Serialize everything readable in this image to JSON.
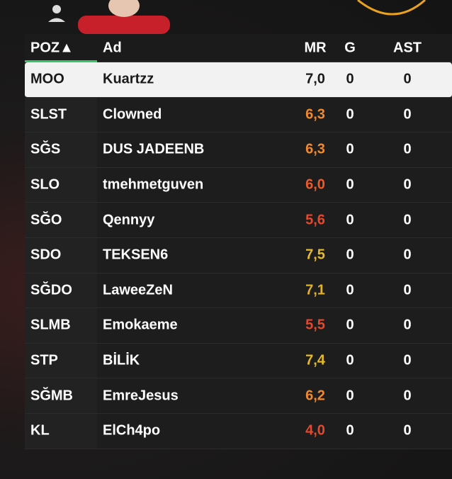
{
  "table": {
    "headers": [
      "POZ▲",
      "Ad",
      "MR",
      "G",
      "AST"
    ],
    "rows": [
      [
        "MOO",
        "Kuartzz",
        "7,0",
        "0",
        "0"
      ],
      [
        "SLST",
        "Clowned",
        "6,3",
        "0",
        "0"
      ],
      [
        "SĞS",
        "DUS JADEENB",
        "6,3",
        "0",
        "0"
      ],
      [
        "SLO",
        "tmehmetguven",
        "6,0",
        "0",
        "0"
      ],
      [
        "SĞO",
        "Qennyy",
        "5,6",
        "0",
        "0"
      ],
      [
        "SDO",
        "TEKSEN6",
        "7,5",
        "0",
        "0"
      ],
      [
        "SĞDO",
        "LaweeZeN",
        "7,1",
        "0",
        "0"
      ],
      [
        "SLMB",
        "Emokaeme",
        "5,5",
        "0",
        "0"
      ],
      [
        "STP",
        "BİLİK",
        "7,4",
        "0",
        "0"
      ],
      [
        "SĞMB",
        "EmreJesus",
        "6,2",
        "0",
        "0"
      ],
      [
        "KL",
        "ElCh4po",
        "4,0",
        "0",
        "0"
      ]
    ],
    "rating_colors": [
      "#1a1a1a",
      "#f08a2c",
      "#f08a2c",
      "#ee5a2a",
      "#e9472b",
      "#e6bb2e",
      "#e0b22c",
      "#e9472b",
      "#e6bb2e",
      "#f08a2c",
      "#e9472b"
    ],
    "selected_row": 0
  }
}
